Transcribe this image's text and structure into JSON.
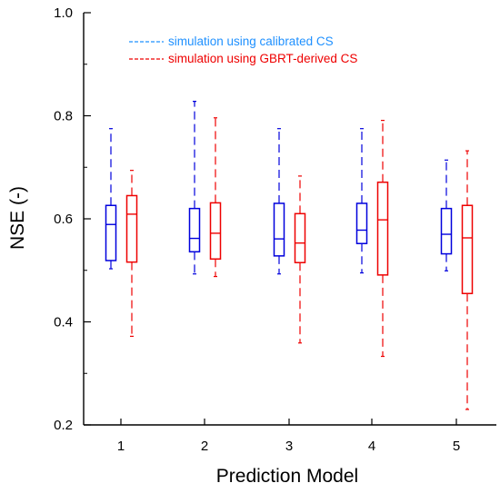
{
  "chart_data": {
    "type": "box",
    "xlabel": "Prediction Model",
    "ylabel": "NSE (-)",
    "ylim": [
      0.2,
      1.0
    ],
    "yticks": [
      0.2,
      0.4,
      0.6,
      0.8,
      1.0
    ],
    "ytick_labels": [
      "0.2",
      "0.4",
      "0.6",
      "0.8",
      "1.0"
    ],
    "categories": [
      "1",
      "2",
      "3",
      "4",
      "5"
    ],
    "grid": false,
    "legend_position": "top",
    "series": [
      {
        "name": "simulation using calibrated CS",
        "color": "#0000dd",
        "legend_color": "#1e90ff",
        "boxes": [
          {
            "min": 0.503,
            "q1": 0.519,
            "median": 0.589,
            "q3": 0.626,
            "max": 0.775
          },
          {
            "min": 0.493,
            "q1": 0.536,
            "median": 0.562,
            "q3": 0.62,
            "max": 0.828
          },
          {
            "min": 0.493,
            "q1": 0.528,
            "median": 0.561,
            "q3": 0.63,
            "max": 0.775
          },
          {
            "min": 0.495,
            "q1": 0.552,
            "median": 0.578,
            "q3": 0.63,
            "max": 0.775
          },
          {
            "min": 0.499,
            "q1": 0.532,
            "median": 0.57,
            "q3": 0.62,
            "max": 0.714
          }
        ]
      },
      {
        "name": "simulation using GBRT-derived CS",
        "color": "#ee0000",
        "legend_color": "#ee0000",
        "boxes": [
          {
            "min": 0.372,
            "q1": 0.516,
            "median": 0.609,
            "q3": 0.645,
            "max": 0.694
          },
          {
            "min": 0.488,
            "q1": 0.522,
            "median": 0.572,
            "q3": 0.631,
            "max": 0.796
          },
          {
            "min": 0.359,
            "q1": 0.515,
            "median": 0.553,
            "q3": 0.61,
            "max": 0.683
          },
          {
            "min": 0.333,
            "q1": 0.491,
            "median": 0.598,
            "q3": 0.671,
            "max": 0.791
          },
          {
            "min": 0.23,
            "q1": 0.455,
            "median": 0.563,
            "q3": 0.626,
            "max": 0.732
          }
        ]
      }
    ]
  }
}
